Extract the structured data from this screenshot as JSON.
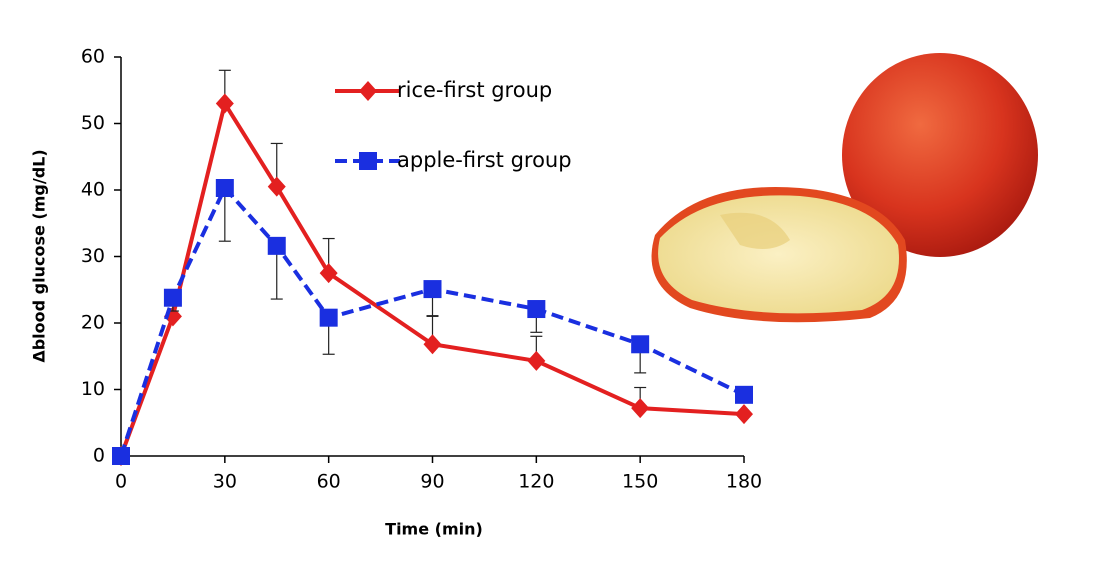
{
  "chart_data": {
    "type": "line",
    "x_label": "Time (min)",
    "y_label": "Δblood glucose (mg/dL)",
    "x": [
      0,
      15,
      30,
      45,
      60,
      90,
      120,
      150,
      180
    ],
    "series": [
      {
        "name": "rice-first group",
        "color": "#e32020",
        "marker": "diamond",
        "dashed": false,
        "error_direction": "up",
        "values": [
          0,
          21,
          53,
          40.5,
          27.5,
          16.8,
          14.3,
          7.2,
          6.3
        ],
        "error": [
          null,
          2.5,
          5,
          6.5,
          5.2,
          4.2,
          3.7,
          3.1,
          null
        ]
      },
      {
        "name": "apple-first group",
        "color": "#1a2fe0",
        "marker": "square",
        "dashed": true,
        "error_direction": "down",
        "values": [
          0,
          23.8,
          40.3,
          31.6,
          20.8,
          25.1,
          22.1,
          16.8,
          9.2
        ],
        "error": [
          null,
          2,
          8,
          8,
          5.5,
          4,
          3.5,
          4.3,
          null
        ]
      }
    ],
    "xlim": [
      0,
      180
    ],
    "xticks": [
      0,
      30,
      60,
      90,
      120,
      150,
      180
    ],
    "ylim": [
      0,
      60
    ],
    "yticks": [
      0,
      10,
      20,
      30,
      40,
      50,
      60
    ],
    "grid": false
  }
}
